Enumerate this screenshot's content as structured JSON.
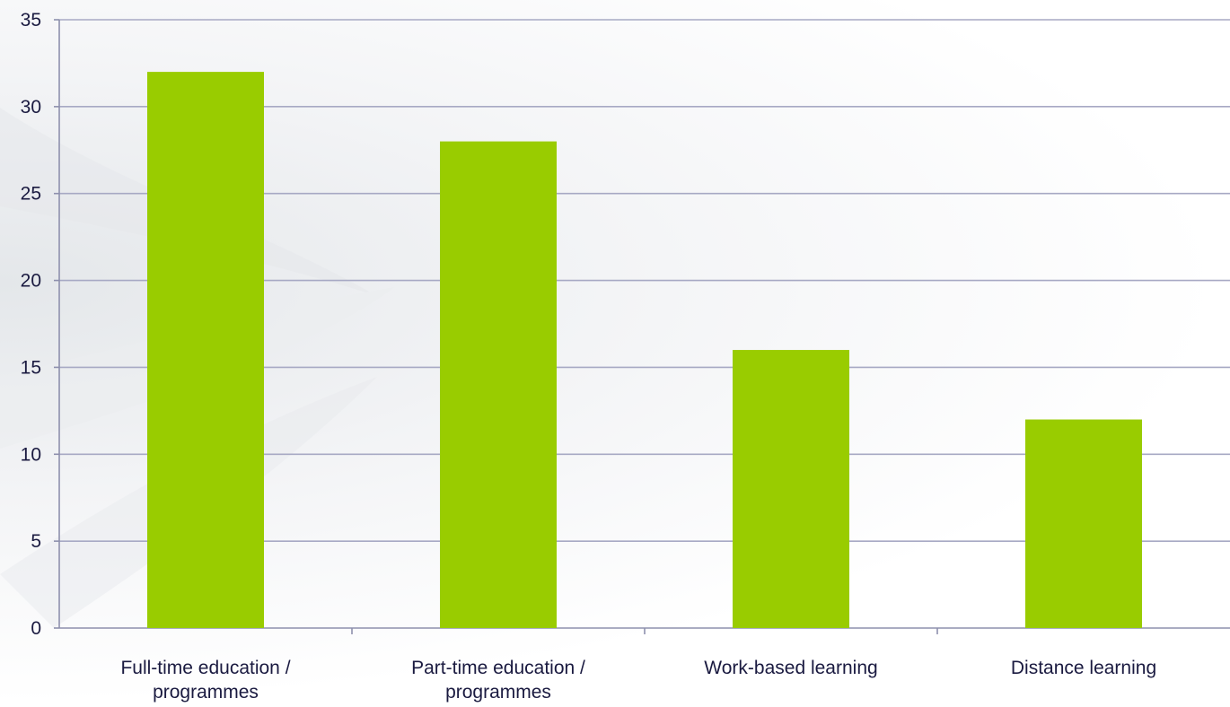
{
  "chart_data": {
    "type": "bar",
    "title": "",
    "xlabel": "",
    "ylabel": "",
    "categories": [
      [
        "Full-time education /",
        "programmes"
      ],
      [
        "Part-time education /",
        "programmes"
      ],
      [
        "Work-based learning"
      ],
      [
        "Distance learning"
      ]
    ],
    "values": [
      32,
      28,
      16,
      12
    ],
    "ylim": [
      0,
      35
    ],
    "yticks": [
      0,
      5,
      10,
      15,
      20,
      25,
      30,
      35
    ],
    "grid": true,
    "legend": "none",
    "colors": {
      "bar": "#99cc00",
      "grid": "#a7a9c4",
      "text": "#1a1a40"
    }
  }
}
